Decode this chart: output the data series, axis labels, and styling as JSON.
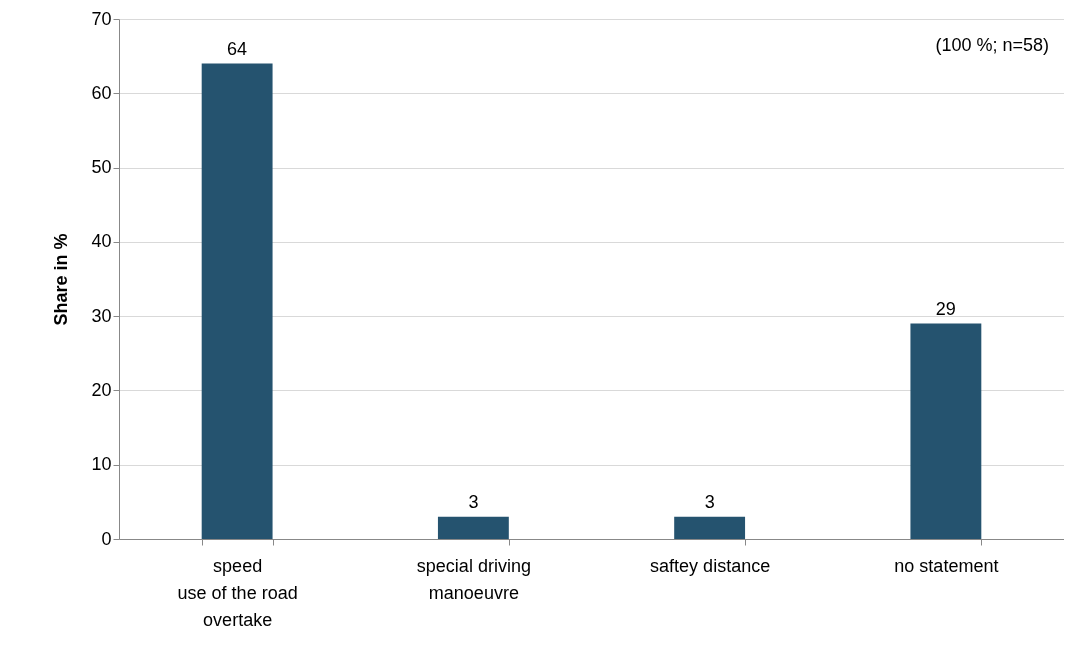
{
  "chart_data": {
    "type": "bar",
    "ylabel": "Share in %",
    "categories": [
      "speed\nuse of the road\novertake",
      "special driving\nmanoeuvre",
      "saftey distance",
      "no statement"
    ],
    "values": [
      64,
      3,
      3,
      29
    ],
    "color": "#25536f",
    "ylim": [
      0,
      70
    ],
    "yticks": [
      0,
      10,
      20,
      30,
      40,
      50,
      60,
      70
    ],
    "grid": "y",
    "data_labels": true,
    "annotations": [
      "(100 %; n=58)"
    ]
  }
}
